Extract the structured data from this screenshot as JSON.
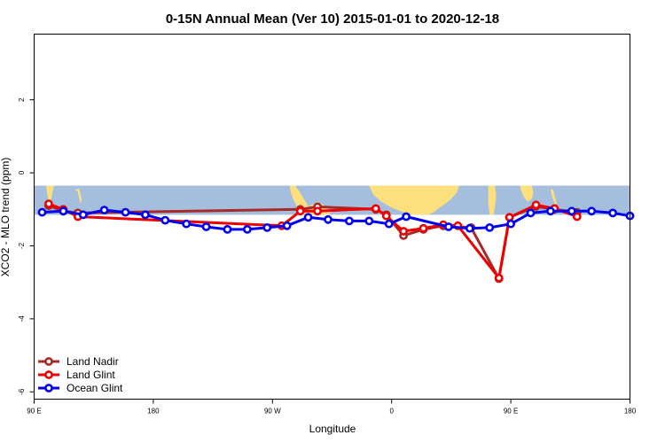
{
  "chart_data": {
    "type": "line",
    "title": "0-15N Annual Mean (Ver 10)   2015-01-01 to 2020-12-18",
    "xlabel": "Longitude",
    "ylabel": "XCO2 - MLO trend (ppm)",
    "x_ticks": [
      {
        "value": 90,
        "label": "90 E"
      },
      {
        "value": 180,
        "label": "180"
      },
      {
        "value": 270,
        "label": "90 W"
      },
      {
        "value": 360,
        "label": "0"
      },
      {
        "value": 450,
        "label": "90 E"
      },
      {
        "value": 540,
        "label": "180"
      }
    ],
    "y_ticks": [
      {
        "value": 2,
        "label": "2"
      },
      {
        "value": 0,
        "label": "0"
      },
      {
        "value": -2,
        "label": "-2"
      },
      {
        "value": -4,
        "label": "-4"
      },
      {
        "value": -6,
        "label": "-6"
      }
    ],
    "xlim": [
      90,
      540
    ],
    "ylim": [
      -6.2,
      3.8
    ],
    "latitude_band": [
      0,
      15
    ],
    "legend_position": "bottom-left",
    "series": [
      {
        "name": "Land Nadir",
        "color": "#a52a2a",
        "points": [
          [
            101,
            -0.9
          ],
          [
            112,
            -1.05
          ],
          [
            123,
            -1.1
          ],
          [
            291,
            -1.0
          ],
          [
            304,
            -0.93
          ],
          [
            348,
            -1.0
          ],
          [
            356,
            -1.15
          ],
          [
            369,
            -1.72
          ],
          [
            384,
            -1.55
          ],
          [
            399,
            -1.45
          ],
          [
            420,
            -1.5
          ],
          [
            441,
            -2.9
          ],
          [
            449,
            -1.22
          ],
          [
            469,
            -0.92
          ],
          [
            483,
            -1.0
          ],
          [
            500,
            -1.08
          ]
        ]
      },
      {
        "name": "Land Glint",
        "color": "#ee0000",
        "points": [
          [
            101,
            -0.85
          ],
          [
            112,
            -1.0
          ],
          [
            123,
            -1.2
          ],
          [
            277,
            -1.45
          ],
          [
            291,
            -1.05
          ],
          [
            304,
            -1.05
          ],
          [
            348,
            -0.98
          ],
          [
            356,
            -1.18
          ],
          [
            369,
            -1.6
          ],
          [
            384,
            -1.52
          ],
          [
            399,
            -1.42
          ],
          [
            410,
            -1.45
          ],
          [
            441,
            -2.88
          ],
          [
            449,
            -1.22
          ],
          [
            469,
            -0.88
          ],
          [
            483,
            -0.98
          ],
          [
            500,
            -1.2
          ]
        ]
      },
      {
        "name": "Ocean Glint",
        "color": "#0000ee",
        "points": [
          [
            96,
            -1.08
          ],
          [
            112,
            -1.05
          ],
          [
            127,
            -1.15
          ],
          [
            143,
            -1.02
          ],
          [
            159,
            -1.08
          ],
          [
            174,
            -1.15
          ],
          [
            189,
            -1.3
          ],
          [
            205,
            -1.4
          ],
          [
            220,
            -1.48
          ],
          [
            236,
            -1.55
          ],
          [
            251,
            -1.55
          ],
          [
            266,
            -1.5
          ],
          [
            281,
            -1.45
          ],
          [
            297,
            -1.22
          ],
          [
            312,
            -1.28
          ],
          [
            328,
            -1.32
          ],
          [
            343,
            -1.32
          ],
          [
            358,
            -1.4
          ],
          [
            371,
            -1.2
          ],
          [
            403,
            -1.48
          ],
          [
            419,
            -1.52
          ],
          [
            434,
            -1.5
          ],
          [
            450,
            -1.4
          ],
          [
            465,
            -1.1
          ],
          [
            480,
            -1.05
          ],
          [
            496,
            -1.05
          ],
          [
            511,
            -1.05
          ],
          [
            527,
            -1.1
          ],
          [
            540,
            -1.18
          ]
        ]
      }
    ]
  },
  "colors": {
    "ocean_band": "#a6bedd",
    "land": "#fde07e"
  }
}
